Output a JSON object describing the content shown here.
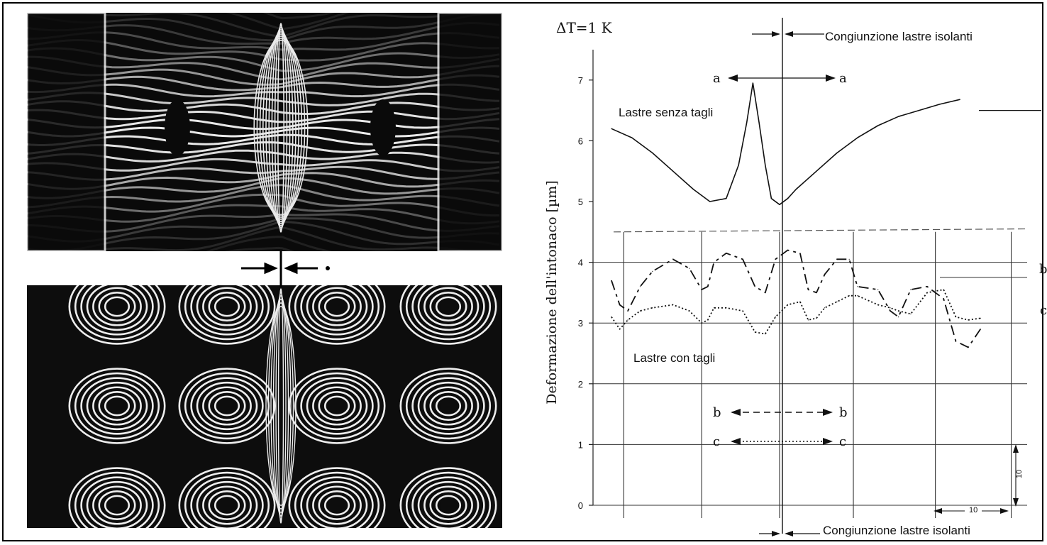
{
  "photos": {
    "top_caption": "",
    "bottom_caption": ""
  },
  "chart_data": {
    "type": "line",
    "title": "ΔT=1 K",
    "ylabel": "Deformazione dell'intonaco [µm]",
    "xlabel": "",
    "ylim": [
      0,
      7.5
    ],
    "yticks": [
      0,
      1,
      2,
      3,
      4,
      5,
      6,
      7
    ],
    "grid": true,
    "annotations": {
      "joint_top": "Congiunzione lastre isolanti",
      "joint_bottom": "Congiunzione lastre isolanti",
      "senza_tagli": "Lastre senza tagli",
      "con_tagli": "Lastre con tagli",
      "a_left": "a",
      "a_right": "a",
      "b_left": "b",
      "b_right": "b",
      "c_left": "c",
      "c_right": "c",
      "right_b": "b",
      "right_c": "c",
      "dim_vertical": "10",
      "dim_horizontal": "10"
    },
    "series": [
      {
        "name": "Lastre senza tagli",
        "style": "solid",
        "x": [
          0,
          0.05,
          0.1,
          0.15,
          0.2,
          0.24,
          0.28,
          0.31,
          0.33,
          0.345,
          0.36,
          0.375,
          0.39,
          0.41,
          0.43,
          0.45,
          0.5,
          0.55,
          0.6,
          0.65,
          0.7,
          0.75,
          0.8,
          0.85
        ],
        "values": [
          6.2,
          6.05,
          5.8,
          5.5,
          5.2,
          5.0,
          5.05,
          5.6,
          6.3,
          6.95,
          6.3,
          5.6,
          5.05,
          4.95,
          5.05,
          5.2,
          5.5,
          5.8,
          6.05,
          6.25,
          6.4,
          6.5,
          6.6,
          6.68
        ]
      },
      {
        "name": "b",
        "style": "dashed",
        "x": [
          0,
          0.02,
          0.04,
          0.07,
          0.1,
          0.15,
          0.19,
          0.22,
          0.235,
          0.25,
          0.28,
          0.32,
          0.35,
          0.375,
          0.4,
          0.43,
          0.46,
          0.48,
          0.5,
          0.52,
          0.55,
          0.58,
          0.6,
          0.65,
          0.68,
          0.7,
          0.73,
          0.77,
          0.81,
          0.84,
          0.87,
          0.9
        ],
        "values": [
          3.7,
          3.3,
          3.2,
          3.6,
          3.85,
          4.05,
          3.9,
          3.55,
          3.6,
          4.0,
          4.15,
          4.05,
          3.6,
          3.5,
          4.05,
          4.2,
          4.15,
          3.55,
          3.5,
          3.8,
          4.05,
          4.05,
          3.6,
          3.55,
          3.2,
          3.1,
          3.55,
          3.6,
          3.4,
          2.7,
          2.6,
          2.9
        ]
      },
      {
        "name": "c",
        "style": "dotted",
        "x": [
          0,
          0.02,
          0.04,
          0.07,
          0.1,
          0.15,
          0.19,
          0.22,
          0.235,
          0.25,
          0.28,
          0.32,
          0.35,
          0.375,
          0.4,
          0.43,
          0.46,
          0.48,
          0.5,
          0.52,
          0.55,
          0.58,
          0.6,
          0.65,
          0.68,
          0.7,
          0.73,
          0.77,
          0.81,
          0.84,
          0.87,
          0.9
        ],
        "values": [
          3.1,
          2.9,
          3.05,
          3.2,
          3.25,
          3.3,
          3.2,
          3.0,
          3.05,
          3.25,
          3.25,
          3.2,
          2.85,
          2.82,
          3.1,
          3.3,
          3.35,
          3.05,
          3.08,
          3.25,
          3.35,
          3.45,
          3.45,
          3.3,
          3.25,
          3.2,
          3.15,
          3.5,
          3.55,
          3.1,
          3.05,
          3.08
        ]
      }
    ]
  }
}
